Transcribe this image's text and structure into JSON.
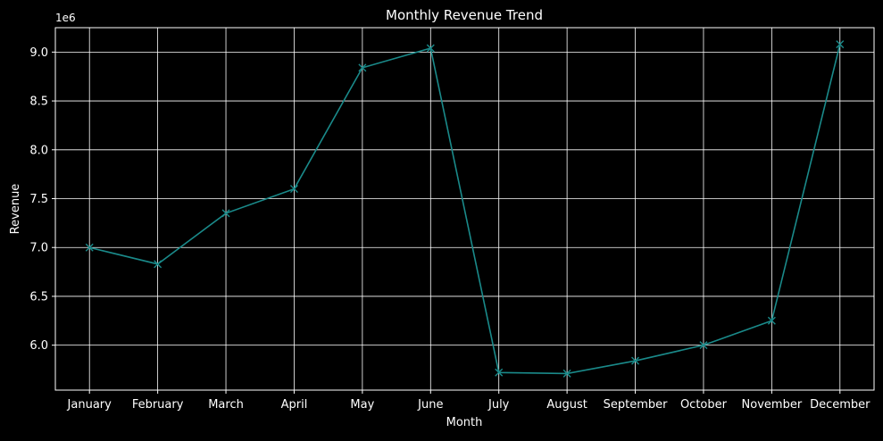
{
  "chart_data": {
    "type": "line",
    "title": "Monthly Revenue Trend",
    "xlabel": "Month",
    "ylabel": "Revenue",
    "y_offset_label": "1e6",
    "categories": [
      "January",
      "February",
      "March",
      "April",
      "May",
      "June",
      "July",
      "August",
      "September",
      "October",
      "November",
      "December"
    ],
    "series": [
      {
        "values": [
          7.0,
          6.83,
          7.35,
          7.6,
          8.84,
          9.04,
          5.72,
          5.71,
          5.84,
          6.0,
          6.25,
          9.08
        ]
      }
    ],
    "y_ticks": [
      6.0,
      6.5,
      7.0,
      7.5,
      8.0,
      8.5,
      9.0
    ],
    "ylim": [
      5.54,
      9.25
    ],
    "grid": true,
    "marker": "x",
    "colors": {
      "background": "#000000",
      "line": "#1a8a8a",
      "grid": "#ffffff",
      "axis": "#ffffff",
      "text": "#ffffff"
    }
  }
}
